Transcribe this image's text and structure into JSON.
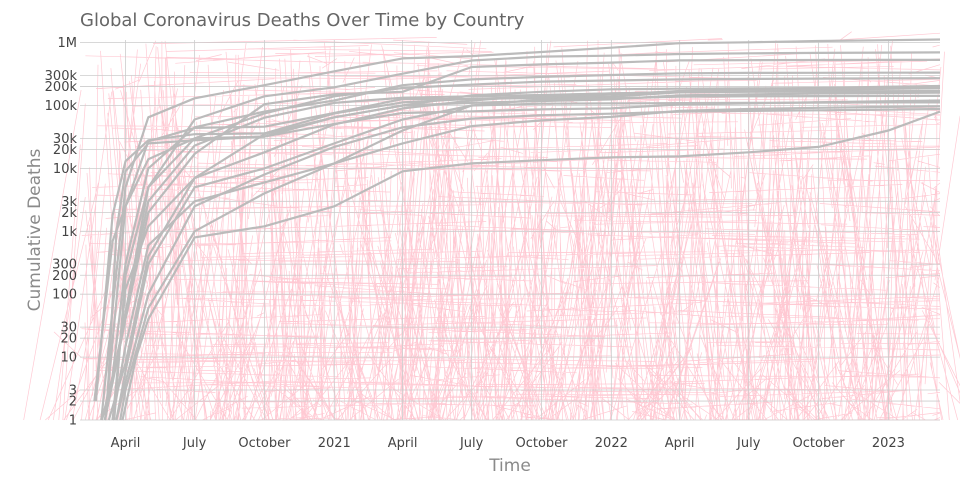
{
  "chart_data": {
    "type": "line",
    "title": "Global Coronavirus Deaths Over Time by Country",
    "xlabel": "Time",
    "ylabel": "Cumulative Deaths",
    "yscale": "log",
    "ylim": [
      1,
      1100000
    ],
    "xlim": [
      "2020-02-01",
      "2023-03-10"
    ],
    "grid": true,
    "legend": "none",
    "x_ticks": [
      {
        "date": "2020-04-01",
        "label": "April"
      },
      {
        "date": "2020-07-01",
        "label": "July"
      },
      {
        "date": "2020-10-01",
        "label": "October"
      },
      {
        "date": "2021-01-01",
        "label": "2021"
      },
      {
        "date": "2021-04-01",
        "label": "April"
      },
      {
        "date": "2021-07-01",
        "label": "July"
      },
      {
        "date": "2021-10-01",
        "label": "October"
      },
      {
        "date": "2022-01-01",
        "label": "2022"
      },
      {
        "date": "2022-04-01",
        "label": "April"
      },
      {
        "date": "2022-07-01",
        "label": "July"
      },
      {
        "date": "2022-10-01",
        "label": "October"
      },
      {
        "date": "2023-01-01",
        "label": "2023"
      }
    ],
    "y_ticks": [
      {
        "value": 1,
        "label": "1"
      },
      {
        "value": 2,
        "label": "2"
      },
      {
        "value": 3,
        "label": "3"
      },
      {
        "value": 10,
        "label": "10"
      },
      {
        "value": 20,
        "label": "20"
      },
      {
        "value": 30,
        "label": "30"
      },
      {
        "value": 100,
        "label": "100"
      },
      {
        "value": 200,
        "label": "200"
      },
      {
        "value": 300,
        "label": "300"
      },
      {
        "value": 1000,
        "label": "1k"
      },
      {
        "value": 2000,
        "label": "2k"
      },
      {
        "value": 3000,
        "label": "3k"
      },
      {
        "value": 10000,
        "label": "10k"
      },
      {
        "value": 20000,
        "label": "20k"
      },
      {
        "value": 30000,
        "label": "30k"
      },
      {
        "value": 100000,
        "label": "100k"
      },
      {
        "value": 200000,
        "label": "200k"
      },
      {
        "value": 300000,
        "label": "300k"
      },
      {
        "value": 1000000,
        "label": "1M"
      }
    ],
    "colors": {
      "highlight": "#bbbbbb",
      "background_lines": "#ffc0cb",
      "grid": "#e0e0e0"
    },
    "series": [
      {
        "x": [
          "2020-02-29",
          "2020-03-15",
          "2020-04-01",
          "2020-05-01",
          "2020-07-01",
          "2020-10-01",
          "2021-01-01",
          "2021-04-01",
          "2021-07-01",
          "2021-10-01",
          "2022-01-01",
          "2022-04-01",
          "2022-07-01",
          "2022-10-01",
          "2023-01-01",
          "2023-03-10"
        ],
        "values": [
          1,
          60,
          5000,
          65000,
          130000,
          210000,
          350000,
          560000,
          610000,
          710000,
          830000,
          980000,
          1010000,
          1060000,
          1090000,
          1120000
        ]
      },
      {
        "x": [
          "2020-03-17",
          "2020-04-01",
          "2020-05-01",
          "2020-07-01",
          "2020-10-01",
          "2021-01-01",
          "2021-04-01",
          "2021-07-01",
          "2021-10-01",
          "2022-01-01",
          "2022-04-01",
          "2022-07-01",
          "2022-10-01",
          "2023-01-01",
          "2023-03-10"
        ],
        "values": [
          1,
          200,
          5000,
          60000,
          140000,
          195000,
          320000,
          520000,
          600000,
          620000,
          660000,
          675000,
          686000,
          694000,
          699000
        ]
      },
      {
        "x": [
          "2020-03-10",
          "2020-04-01",
          "2020-05-01",
          "2020-07-01",
          "2020-10-01",
          "2021-01-01",
          "2021-04-01",
          "2021-07-01",
          "2021-10-01",
          "2022-01-01",
          "2022-04-01",
          "2022-07-01",
          "2022-10-01",
          "2023-01-01",
          "2023-03-10"
        ],
        "values": [
          2,
          40,
          2000,
          17000,
          105000,
          150000,
          165000,
          410000,
          450000,
          481000,
          521000,
          525000,
          529000,
          531000,
          531000
        ]
      },
      {
        "x": [
          "2020-03-01",
          "2020-03-15",
          "2020-04-01",
          "2020-05-01",
          "2020-07-01",
          "2020-10-01",
          "2021-01-01",
          "2021-04-01",
          "2021-07-01",
          "2021-10-01",
          "2022-01-01",
          "2022-04-01",
          "2022-07-01",
          "2022-10-01",
          "2023-01-01",
          "2023-03-10"
        ],
        "values": [
          1,
          5,
          300,
          10000,
          45000,
          80000,
          120000,
          210000,
          260000,
          285000,
          305000,
          325000,
          330000,
          331000,
          332000,
          333000
        ]
      },
      {
        "x": [
          "2020-03-05",
          "2020-04-01",
          "2020-05-01",
          "2020-07-01",
          "2020-10-01",
          "2021-01-01",
          "2021-04-01",
          "2021-07-01",
          "2021-10-01",
          "2022-01-01",
          "2022-04-01",
          "2022-07-01",
          "2022-10-01",
          "2023-01-01",
          "2023-03-10"
        ],
        "values": [
          1,
          50,
          5000,
          30000,
          75000,
          140000,
          190000,
          215000,
          240000,
          250000,
          260000,
          265000,
          268000,
          270000,
          272000
        ]
      },
      {
        "x": [
          "2020-02-22",
          "2020-03-15",
          "2020-04-01",
          "2020-05-01",
          "2020-07-01",
          "2020-10-01",
          "2021-01-01",
          "2021-04-01",
          "2021-07-01",
          "2021-10-01",
          "2022-01-01",
          "2022-04-01",
          "2022-07-01",
          "2022-10-01",
          "2023-01-01",
          "2023-03-10"
        ],
        "values": [
          2,
          1800,
          13000,
          28000,
          35000,
          36000,
          75000,
          112000,
          128000,
          131000,
          138000,
          162000,
          169000,
          176000,
          184000,
          188000
        ]
      },
      {
        "x": [
          "2020-03-05",
          "2020-04-01",
          "2020-05-01",
          "2020-07-01",
          "2020-10-01",
          "2021-01-01",
          "2021-04-01",
          "2021-07-01",
          "2021-10-01",
          "2022-01-01",
          "2022-04-01",
          "2022-07-01",
          "2022-10-01",
          "2023-01-01",
          "2023-03-10"
        ],
        "values": [
          1,
          2500,
          27000,
          44000,
          46000,
          76000,
          127000,
          128000,
          137000,
          149000,
          170000,
          181000,
          190000,
          199000,
          204000
        ]
      },
      {
        "x": [
          "2020-03-10",
          "2020-04-01",
          "2020-05-01",
          "2020-07-01",
          "2020-10-01",
          "2021-01-01",
          "2021-04-01",
          "2021-07-01",
          "2021-10-01",
          "2022-01-01",
          "2022-04-01",
          "2022-07-01",
          "2022-10-01",
          "2023-01-01",
          "2023-03-10"
        ],
        "values": [
          1,
          8,
          400,
          7000,
          18000,
          50000,
          90000,
          120000,
          145000,
          156000,
          162000,
          166000,
          167000,
          168000,
          168000
        ]
      },
      {
        "x": [
          "2020-02-20",
          "2020-03-15",
          "2020-04-01",
          "2020-05-01",
          "2020-07-01",
          "2020-10-01",
          "2021-01-01",
          "2021-04-01",
          "2021-07-01",
          "2021-10-01",
          "2022-01-01",
          "2022-04-01",
          "2022-07-01",
          "2022-10-01",
          "2023-01-01",
          "2023-03-10"
        ],
        "values": [
          2,
          700,
          2500,
          14000,
          30000,
          32000,
          65000,
          100000,
          110000,
          118000,
          125000,
          145000,
          150000,
          155000,
          158000,
          160000
        ]
      },
      {
        "x": [
          "2020-03-05",
          "2020-04-01",
          "2020-05-01",
          "2020-07-01",
          "2020-10-01",
          "2021-01-01",
          "2021-04-01",
          "2021-07-01",
          "2021-10-01",
          "2022-01-01",
          "2022-04-01",
          "2022-07-01",
          "2022-10-01",
          "2023-01-01",
          "2023-03-10"
        ],
        "values": [
          1,
          50,
          3000,
          23000,
          64000,
          110000,
          133000,
          140000,
          147000,
          155000,
          163000,
          166000,
          167000,
          169000,
          170000
        ]
      },
      {
        "x": [
          "2020-03-08",
          "2020-03-20",
          "2020-04-01",
          "2020-05-01",
          "2020-07-01",
          "2020-10-01",
          "2021-01-01",
          "2021-04-01",
          "2021-07-01",
          "2021-10-01",
          "2022-01-01",
          "2022-04-01",
          "2022-07-01",
          "2022-10-01",
          "2023-01-01",
          "2023-03-10"
        ],
        "values": [
          2,
          1000,
          9000,
          25000,
          28000,
          32000,
          51000,
          76000,
          81000,
          87000,
          90000,
          104000,
          108000,
          113000,
          117000,
          120000
        ]
      },
      {
        "x": [
          "2020-03-15",
          "2020-04-01",
          "2020-05-01",
          "2020-07-01",
          "2020-10-01",
          "2021-01-01",
          "2021-04-01",
          "2021-07-01",
          "2021-10-01",
          "2022-01-01",
          "2022-04-01",
          "2022-07-01",
          "2022-10-01",
          "2023-01-01",
          "2023-03-10"
        ],
        "values": [
          1,
          120,
          1200,
          7000,
          35000,
          65000,
          100000,
          145000,
          165000,
          181000,
          185000,
          187000,
          189000,
          190000,
          191000
        ]
      },
      {
        "x": [
          "2020-03-20",
          "2020-04-01",
          "2020-05-01",
          "2020-07-01",
          "2020-10-01",
          "2021-01-01",
          "2021-04-01",
          "2021-07-01",
          "2021-10-01",
          "2022-01-01",
          "2022-04-01",
          "2022-07-01",
          "2022-10-01",
          "2023-01-01",
          "2023-03-10"
        ],
        "values": [
          1,
          4,
          100,
          2500,
          8000,
          22000,
          45000,
          62000,
          70000,
          74000,
          80000,
          82000,
          84000,
          86000,
          88000
        ]
      },
      {
        "x": [
          "2020-03-20",
          "2020-04-01",
          "2020-05-01",
          "2020-07-01",
          "2020-10-01",
          "2021-01-01",
          "2021-04-01",
          "2021-07-01",
          "2021-10-01",
          "2022-01-01",
          "2022-04-01",
          "2022-07-01",
          "2022-10-01",
          "2023-01-01",
          "2023-03-10"
        ],
        "values": [
          1,
          6,
          300,
          5000,
          10000,
          25000,
          60000,
          100000,
          125000,
          130000,
          138000,
          140000,
          141000,
          142000,
          142000
        ]
      },
      {
        "x": [
          "2020-03-15",
          "2020-04-01",
          "2020-05-01",
          "2020-07-01",
          "2020-10-01",
          "2021-01-01",
          "2021-04-01",
          "2021-07-01",
          "2021-10-01",
          "2022-01-01",
          "2022-04-01",
          "2022-07-01",
          "2022-10-01",
          "2023-01-01",
          "2023-03-10"
        ],
        "values": [
          1,
          15,
          600,
          3000,
          6000,
          12000,
          25000,
          47000,
          58000,
          66000,
          82000,
          88000,
          92000,
          95000,
          97000
        ]
      },
      {
        "x": [
          "2020-03-25",
          "2020-04-01",
          "2020-05-01",
          "2020-07-01",
          "2020-10-01",
          "2021-01-01",
          "2021-04-01",
          "2021-07-01",
          "2021-10-01",
          "2022-01-01",
          "2022-04-01",
          "2022-07-01",
          "2022-10-01",
          "2023-01-01",
          "2023-03-10"
        ],
        "values": [
          1,
          3,
          60,
          1000,
          4000,
          12000,
          40000,
          100000,
          107000,
          108000,
          109000,
          110000,
          111000,
          112000,
          112000
        ]
      },
      {
        "x": [
          "2020-03-28",
          "2020-04-15",
          "2020-05-01",
          "2020-07-01",
          "2020-10-01",
          "2021-01-01",
          "2021-04-01",
          "2021-07-01",
          "2021-10-01",
          "2022-01-01",
          "2022-04-01",
          "2022-07-01",
          "2022-10-01",
          "2023-01-01",
          "2023-03-10"
        ],
        "values": [
          1,
          10,
          40,
          800,
          1200,
          2500,
          9000,
          12000,
          13500,
          15000,
          15500,
          18000,
          22000,
          40000,
          80000
        ]
      }
    ]
  }
}
